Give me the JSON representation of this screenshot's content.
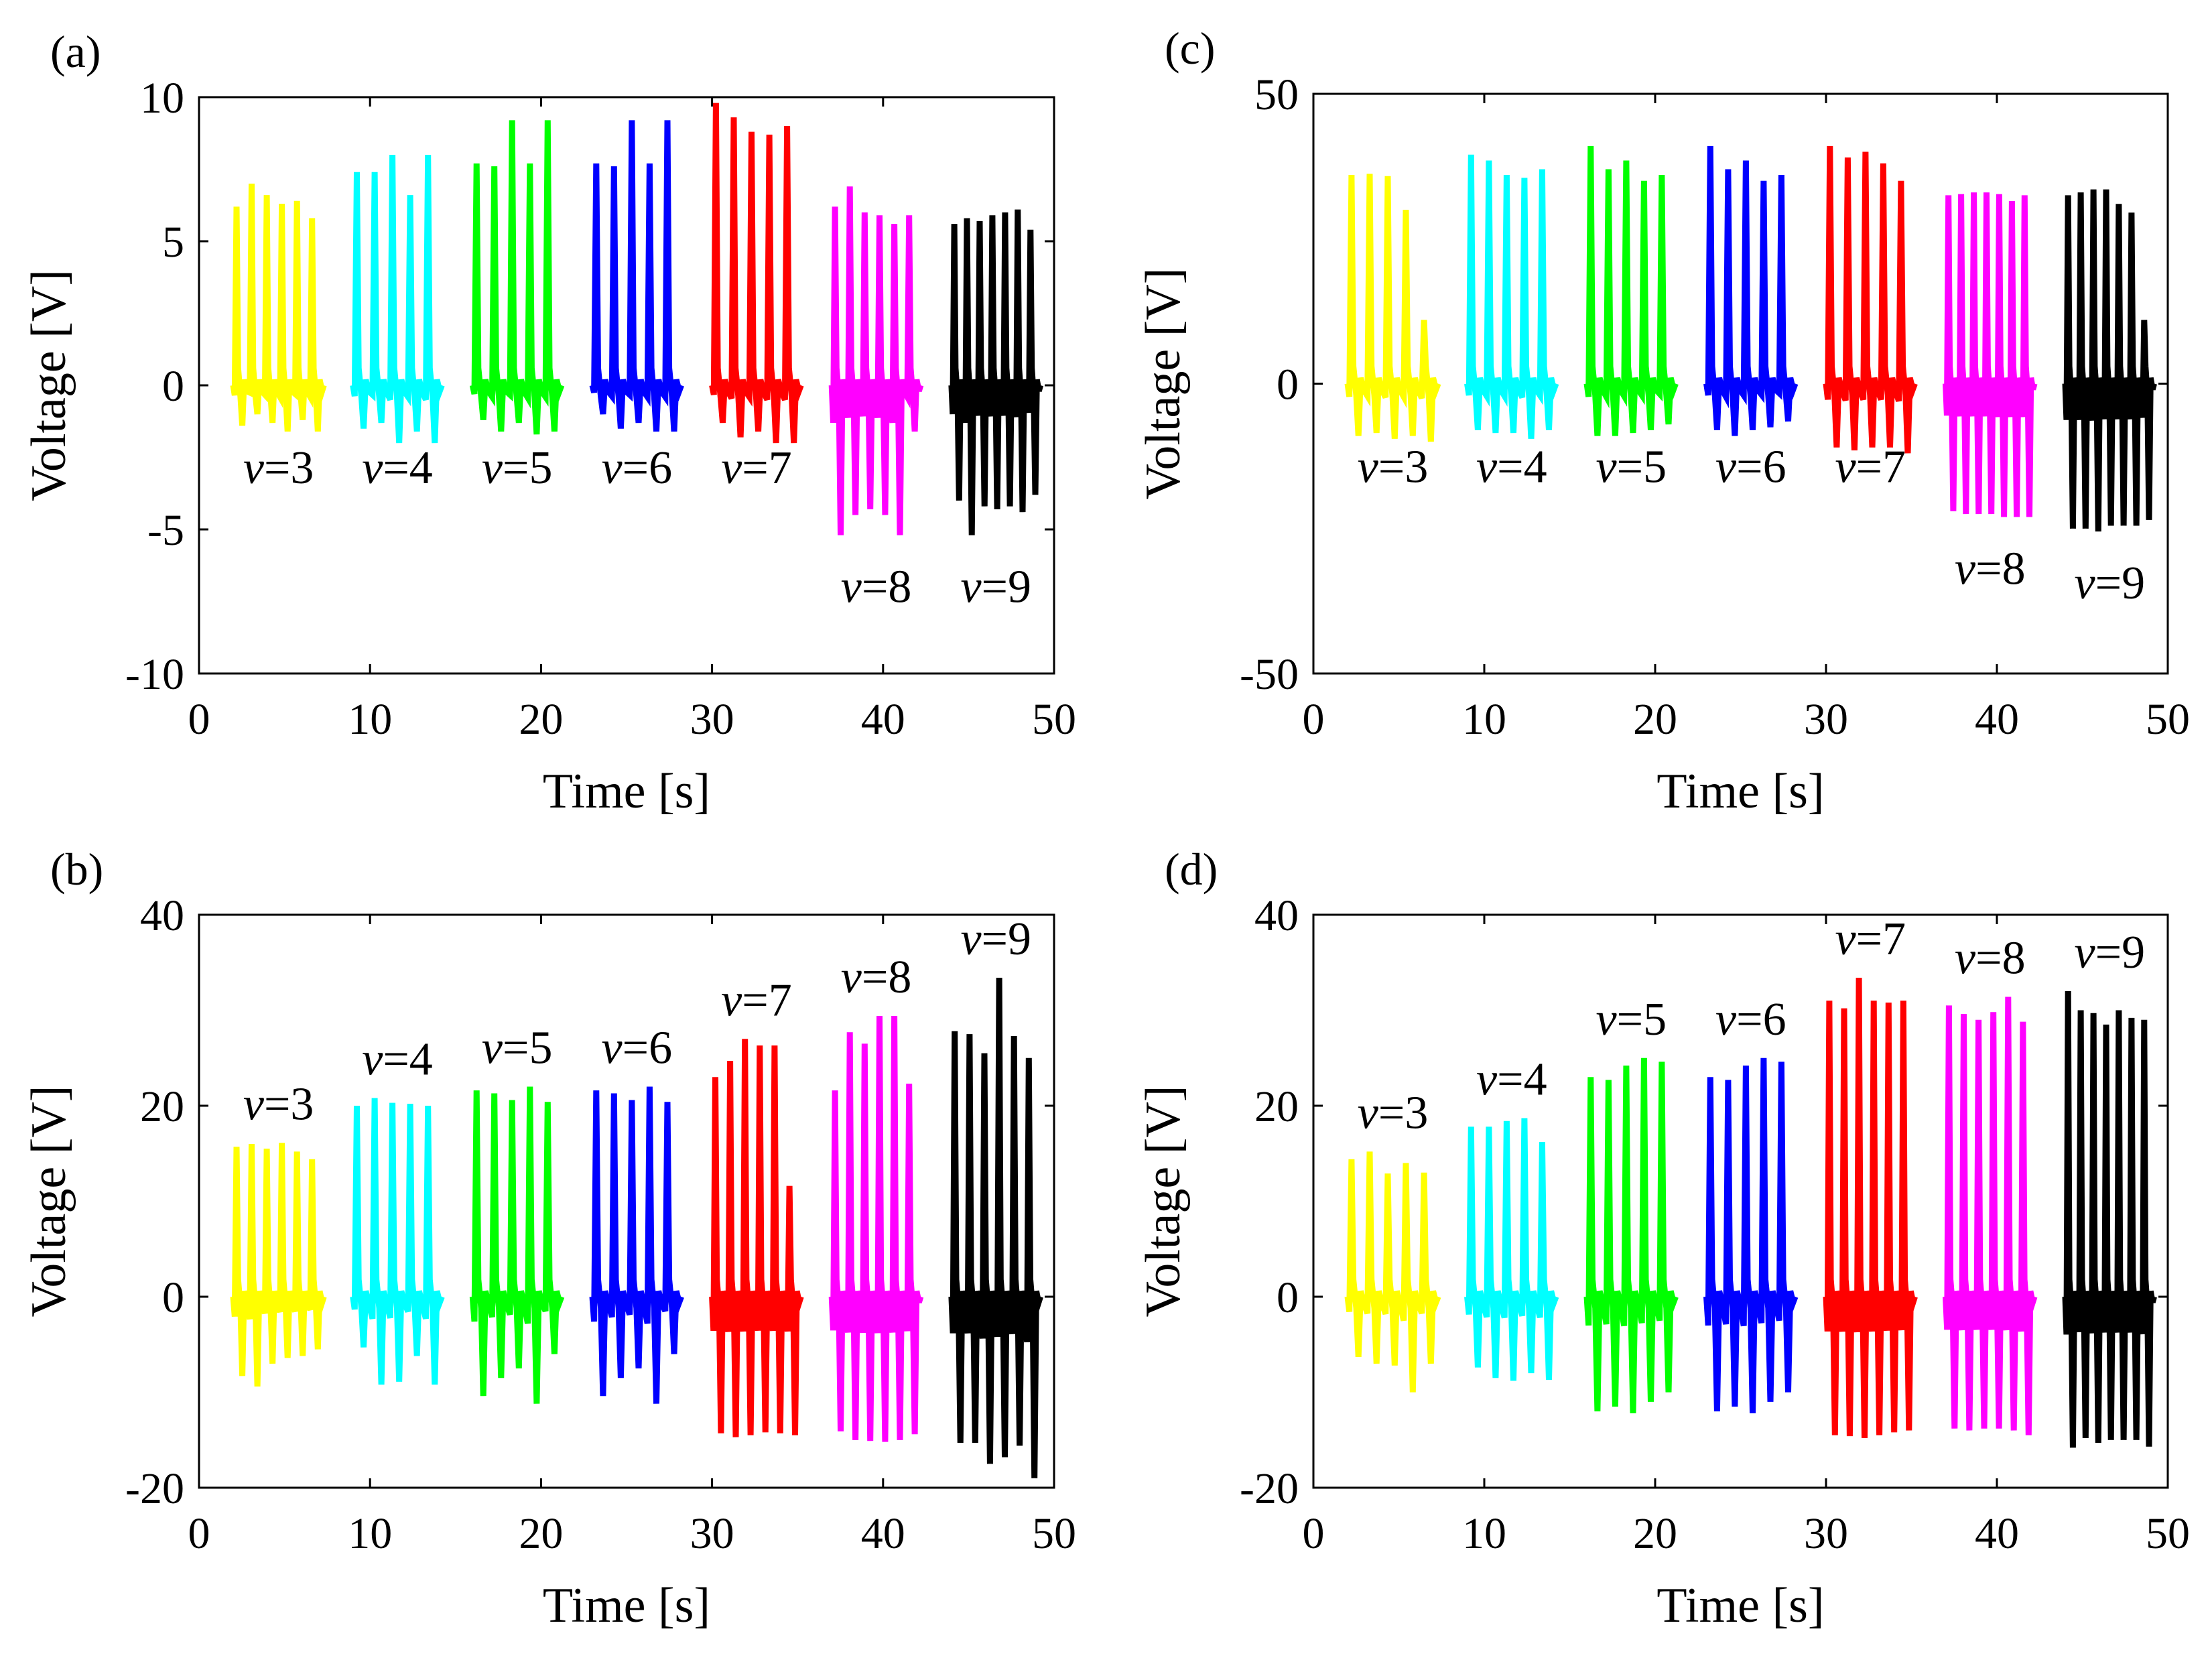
{
  "chart_data": [
    {
      "id": "a",
      "type": "line",
      "panel_label": "(a)",
      "xlabel": "Time [s]",
      "ylabel": "Voltage [V]",
      "xlim": [
        0,
        50
      ],
      "ylim": [
        -10,
        10
      ],
      "xticks": [
        0,
        10,
        20,
        30,
        40,
        50
      ],
      "yticks": [
        -10,
        -5,
        0,
        5,
        10
      ],
      "yticklabels": [
        "-10",
        "-5",
        "0",
        "5",
        "10"
      ],
      "labels_below": true,
      "series": [
        {
          "name": "v=3",
          "color": "#ffff00",
          "start": 2.0,
          "end": 7.3,
          "peaks": [
            6.2,
            7.0,
            6.6,
            6.3,
            6.4,
            5.8
          ],
          "troughs": [
            -1.4,
            -1.0,
            -1.3,
            -1.6,
            -1.2,
            -1.6
          ]
        },
        {
          "name": "v=4",
          "color": "#00ffff",
          "start": 9.0,
          "end": 14.2,
          "peaks": [
            7.4,
            7.4,
            8.0,
            6.6,
            8.0
          ],
          "troughs": [
            -1.5,
            -1.3,
            -2.0,
            -1.6,
            -2.0
          ]
        },
        {
          "name": "v=5",
          "color": "#00ff00",
          "start": 16.0,
          "end": 21.2,
          "peaks": [
            7.7,
            7.6,
            9.2,
            7.7,
            9.2
          ],
          "troughs": [
            -1.2,
            -1.6,
            -1.3,
            -1.7,
            -1.6
          ]
        },
        {
          "name": "v=6",
          "color": "#0000ff",
          "start": 23.0,
          "end": 28.2,
          "peaks": [
            7.7,
            7.6,
            9.2,
            7.7,
            9.2
          ],
          "troughs": [
            -1.0,
            -1.5,
            -1.3,
            -1.6,
            -1.6
          ]
        },
        {
          "name": "v=7",
          "color": "#ff0000",
          "start": 30.0,
          "end": 35.2,
          "peaks": [
            9.8,
            9.3,
            8.8,
            8.7,
            9.0
          ],
          "troughs": [
            -1.3,
            -1.8,
            -1.6,
            -2.0,
            -2.0
          ]
        },
        {
          "name": "v=8",
          "color": "#ff00ff",
          "start": 37.0,
          "end": 42.2,
          "peaks": [
            6.2,
            6.9,
            6.0,
            5.9,
            5.6,
            5.9
          ],
          "troughs": [
            -5.2,
            -4.5,
            -4.3,
            -4.5,
            -5.2,
            -1.6
          ]
        },
        {
          "name": "v=9",
          "color": "#000000",
          "start": 44.0,
          "end": 49.2,
          "peaks": [
            5.6,
            5.8,
            5.7,
            5.9,
            6.0,
            6.1,
            5.4
          ],
          "troughs": [
            -4.0,
            -5.2,
            -4.2,
            -4.3,
            -4.2,
            -4.4,
            -3.8
          ]
        }
      ]
    },
    {
      "id": "b",
      "type": "line",
      "panel_label": "(b)",
      "xlabel": "Time [s]",
      "ylabel": "Voltage [V]",
      "xlim": [
        0,
        50
      ],
      "ylim": [
        -20,
        40
      ],
      "xticks": [
        0,
        10,
        20,
        30,
        40,
        50
      ],
      "yticks": [
        -20,
        0,
        20,
        40
      ],
      "yticklabels": [
        "-20",
        "0",
        "20",
        "40"
      ],
      "labels_below": false,
      "series": [
        {
          "name": "v=3",
          "color": "#ffff00",
          "start": 2.0,
          "end": 7.3,
          "peaks": [
            15.7,
            16.0,
            15.5,
            16.1,
            15.2,
            14.4
          ],
          "troughs": [
            -8.3,
            -9.4,
            -7.0,
            -6.4,
            -6.2,
            -5.5
          ]
        },
        {
          "name": "v=4",
          "color": "#00ffff",
          "start": 9.0,
          "end": 14.2,
          "peaks": [
            20.0,
            20.8,
            20.3,
            20.2,
            20.0
          ],
          "troughs": [
            -5.3,
            -9.2,
            -8.9,
            -6.2,
            -9.2
          ]
        },
        {
          "name": "v=5",
          "color": "#00ff00",
          "start": 16.0,
          "end": 21.2,
          "peaks": [
            21.6,
            21.3,
            20.6,
            22.0,
            20.4
          ],
          "troughs": [
            -10.4,
            -8.5,
            -7.5,
            -11.2,
            -6.0
          ]
        },
        {
          "name": "v=6",
          "color": "#0000ff",
          "start": 23.0,
          "end": 28.2,
          "peaks": [
            21.6,
            21.3,
            20.6,
            22.0,
            20.4
          ],
          "troughs": [
            -10.4,
            -8.5,
            -7.5,
            -11.2,
            -6.0
          ]
        },
        {
          "name": "v=7",
          "color": "#ff0000",
          "start": 30.0,
          "end": 35.2,
          "peaks": [
            23.0,
            24.7,
            27.0,
            26.3,
            26.3,
            11.6
          ],
          "troughs": [
            -14.3,
            -14.7,
            -14.5,
            -14.2,
            -14.3,
            -14.5
          ]
        },
        {
          "name": "v=8",
          "color": "#ff00ff",
          "start": 37.0,
          "end": 42.2,
          "peaks": [
            21.6,
            27.7,
            26.5,
            29.4,
            29.4,
            22.3
          ],
          "troughs": [
            -14.1,
            -15.0,
            -15.1,
            -15.2,
            -15.0,
            -14.4
          ]
        },
        {
          "name": "v=9",
          "color": "#000000",
          "start": 44.0,
          "end": 49.2,
          "peaks": [
            27.8,
            27.5,
            25.5,
            33.4,
            27.3,
            25.0
          ],
          "troughs": [
            -15.3,
            -15.3,
            -17.5,
            -16.8,
            -15.6,
            -19.0
          ]
        }
      ]
    },
    {
      "id": "c",
      "type": "line",
      "panel_label": "(c)",
      "xlabel": "Time [s]",
      "ylabel": "Voltage [V]",
      "xlim": [
        0,
        50
      ],
      "ylim": [
        -50,
        50
      ],
      "xticks": [
        0,
        10,
        20,
        30,
        40,
        50
      ],
      "yticks": [
        -50,
        0,
        50
      ],
      "yticklabels": [
        "-50",
        "0",
        "50"
      ],
      "labels_below": true,
      "series": [
        {
          "name": "v=3",
          "color": "#ffff00",
          "start": 2.0,
          "end": 7.3,
          "peaks": [
            36.0,
            36.2,
            35.8,
            30.0,
            11.0
          ],
          "troughs": [
            -9.0,
            -8.5,
            -9.5,
            -9.0,
            -10.0
          ]
        },
        {
          "name": "v=4",
          "color": "#00ffff",
          "start": 9.0,
          "end": 14.2,
          "peaks": [
            39.5,
            38.5,
            36.0,
            35.5,
            37.0
          ],
          "troughs": [
            -8.0,
            -8.5,
            -8.5,
            -9.5,
            -8.0
          ]
        },
        {
          "name": "v=5",
          "color": "#00ff00",
          "start": 16.0,
          "end": 21.2,
          "peaks": [
            41.0,
            37.0,
            38.5,
            35.0,
            36.0
          ],
          "troughs": [
            -9.0,
            -9.0,
            -8.5,
            -8.0,
            -7.0
          ]
        },
        {
          "name": "v=6",
          "color": "#0000ff",
          "start": 23.0,
          "end": 28.2,
          "peaks": [
            41.0,
            37.0,
            38.5,
            35.0,
            36.0
          ],
          "troughs": [
            -8.0,
            -9.0,
            -8.0,
            -7.5,
            -6.5
          ]
        },
        {
          "name": "v=7",
          "color": "#ff0000",
          "start": 30.0,
          "end": 35.2,
          "peaks": [
            41.0,
            39.0,
            40.0,
            38.0,
            35.0
          ],
          "troughs": [
            -11.0,
            -11.5,
            -11.0,
            -11.0,
            -12.0
          ]
        },
        {
          "name": "v=8",
          "color": "#ff00ff",
          "start": 37.0,
          "end": 42.2,
          "peaks": [
            32.5,
            32.7,
            33.0,
            33.0,
            32.7,
            31.5,
            32.5
          ],
          "troughs": [
            -22.0,
            -22.5,
            -22.5,
            -22.5,
            -23.0,
            -23.0,
            -23.0
          ]
        },
        {
          "name": "v=9",
          "color": "#000000",
          "start": 44.0,
          "end": 49.2,
          "peaks": [
            32.5,
            33.0,
            33.5,
            33.5,
            31.0,
            29.5,
            11.0
          ],
          "troughs": [
            -25.0,
            -25.0,
            -25.5,
            -24.5,
            -24.5,
            -24.5,
            -23.5
          ]
        }
      ]
    },
    {
      "id": "d",
      "type": "line",
      "panel_label": "(d)",
      "xlabel": "Time [s]",
      "ylabel": "Voltage [V]",
      "xlim": [
        0,
        50
      ],
      "ylim": [
        -20,
        40
      ],
      "xticks": [
        0,
        10,
        20,
        30,
        40,
        50
      ],
      "yticks": [
        -20,
        0,
        20,
        40
      ],
      "yticklabels": [
        "-20",
        "0",
        "20",
        "40"
      ],
      "labels_below": false,
      "series": [
        {
          "name": "v=3",
          "color": "#ffff00",
          "start": 2.0,
          "end": 7.3,
          "peaks": [
            14.4,
            15.2,
            12.9,
            14.0,
            13.0
          ],
          "troughs": [
            -6.3,
            -7.0,
            -7.2,
            -10.0,
            -7.0
          ]
        },
        {
          "name": "v=4",
          "color": "#00ffff",
          "start": 9.0,
          "end": 14.2,
          "peaks": [
            17.8,
            17.8,
            18.4,
            18.7,
            16.2
          ],
          "troughs": [
            -7.4,
            -8.5,
            -8.8,
            -8.0,
            -8.7
          ]
        },
        {
          "name": "v=5",
          "color": "#00ff00",
          "start": 16.0,
          "end": 21.2,
          "peaks": [
            23.0,
            22.7,
            24.2,
            25.0,
            24.6
          ],
          "troughs": [
            -12.0,
            -11.5,
            -12.2,
            -11.0,
            -10.0
          ]
        },
        {
          "name": "v=6",
          "color": "#0000ff",
          "start": 23.0,
          "end": 28.2,
          "peaks": [
            23.0,
            22.7,
            24.2,
            25.0,
            24.6
          ],
          "troughs": [
            -12.0,
            -11.5,
            -12.2,
            -11.0,
            -10.0
          ]
        },
        {
          "name": "v=7",
          "color": "#ff0000",
          "start": 30.0,
          "end": 35.2,
          "peaks": [
            31.0,
            30.2,
            33.4,
            31.0,
            30.8,
            31.0
          ],
          "troughs": [
            -14.5,
            -14.6,
            -14.8,
            -14.5,
            -14.2,
            -14.0
          ]
        },
        {
          "name": "v=8",
          "color": "#ff00ff",
          "start": 37.0,
          "end": 42.2,
          "peaks": [
            30.5,
            29.6,
            29.0,
            29.8,
            31.4,
            28.8
          ],
          "troughs": [
            -13.8,
            -14.0,
            -13.8,
            -13.8,
            -14.0,
            -14.5
          ]
        },
        {
          "name": "v=9",
          "color": "#000000",
          "start": 44.0,
          "end": 49.2,
          "peaks": [
            32.0,
            30.0,
            29.7,
            28.5,
            30.0,
            29.2,
            29.0
          ],
          "troughs": [
            -15.8,
            -14.8,
            -15.3,
            -15.0,
            -15.0,
            -15.0,
            -15.7
          ]
        }
      ]
    }
  ]
}
